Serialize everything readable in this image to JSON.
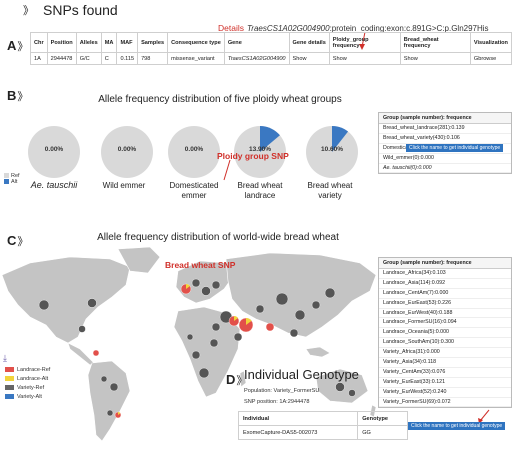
{
  "panels": {
    "a": "A",
    "b": "B",
    "c": "C",
    "d": "D",
    "chev": "》",
    "chev_title": "》"
  },
  "snps_found_title": "SNPs found",
  "details": {
    "label": "Details",
    "gene": "TraesCS1A02G004900",
    "rest": ":protein_coding:exon:c.891G>C:p.Gln297His"
  },
  "snp_table": {
    "headers": [
      "Chr",
      "Position",
      "Alleles",
      "MA",
      "MAF",
      "Samples",
      "Consequence type",
      "Gene",
      "Gene details",
      "Ploidy_group frequency",
      "Bread_wheat frequency",
      "Visualization"
    ],
    "row": [
      "1A",
      "2944478",
      "G/C",
      "C",
      "0.115",
      "798",
      "missense_variant",
      "TraesCS1A02G004900",
      "Show",
      "Show",
      "Show",
      "Gbrowse"
    ]
  },
  "ploidy": {
    "title": "Allele frequency distribution of five ploidy wheat groups",
    "legend": [
      {
        "label": "Ref",
        "color": "#d9d9d9"
      },
      {
        "label": "Alt",
        "color": "#3a78c2"
      }
    ],
    "colors": {
      "ref": "#d9d9d9",
      "alt": "#3a78c2"
    },
    "groups": [
      {
        "label": "Ae. tauschii",
        "pct": "0.00%",
        "alt_fraction": 0.0
      },
      {
        "label": "Wild emmer",
        "pct": "0.00%",
        "alt_fraction": 0.0
      },
      {
        "label": "Domesticated emmer",
        "pct": "0.00%",
        "alt_fraction": 0.0
      },
      {
        "label": "Bread wheat landrace",
        "pct": "13.90%",
        "alt_fraction": 0.139
      },
      {
        "label": "Bread wheat variety",
        "pct": "10.60%",
        "alt_fraction": 0.106
      }
    ],
    "annotation": "Ploidy group SNP",
    "freq_header": "Group (sample number): frequence",
    "freq_rows": [
      "Bread_wheat_landrace(281):0.139",
      "Bread_wheat_variety(430):0.106",
      "Domesticated_emmer(43):0.000",
      "Wild_emmer(0):0.000",
      "Ae. tauschii(0):0.000"
    ],
    "tooltip": "Click the name to get individual genotype"
  },
  "world": {
    "title": "Allele frequency distribution of world-wide bread wheat",
    "annotation": "Bread wheat SNP",
    "legend": [
      {
        "label": "Landrace-Ref",
        "color": "#e2504a"
      },
      {
        "label": "Landrace-Alt",
        "color": "#f2d43a"
      },
      {
        "label": "Variety-Ref",
        "color": "#666666"
      },
      {
        "label": "Variety-Alt",
        "color": "#3a78c2"
      }
    ],
    "freq_header": "Group (sample number): frequence",
    "freq_rows": [
      "Landrace_Africa(34):0.103",
      "Landrace_Asia(114):0.092",
      "Landrace_CentAm(7):0.000",
      "Landrace_EurEast(53):0.226",
      "Landrace_EurWest(40):0.188",
      "Landrace_FormerSU(16):0.094",
      "Landrace_Oceania(5):0.000",
      "Landrace_SouthAm(10):0.300",
      "Variety_Africa(31):0.000",
      "Variety_Asia(34):0.118",
      "Variety_CentAm(33):0.076",
      "Variety_EurEast(33):0.121",
      "Variety_EurWest(52):0.240",
      "Variety_FormerSU(69):0.072"
    ],
    "tooltip": "Click the name to get individual genotype"
  },
  "genotype": {
    "title": "Individual Genotype",
    "population": "Population: Variety_FormerSU",
    "snp_position": "SNP position: 1A:2944478",
    "headers": [
      "Individual",
      "Genotype"
    ],
    "row": [
      "ExomeCapture-DAS5-002073",
      "GG"
    ]
  }
}
